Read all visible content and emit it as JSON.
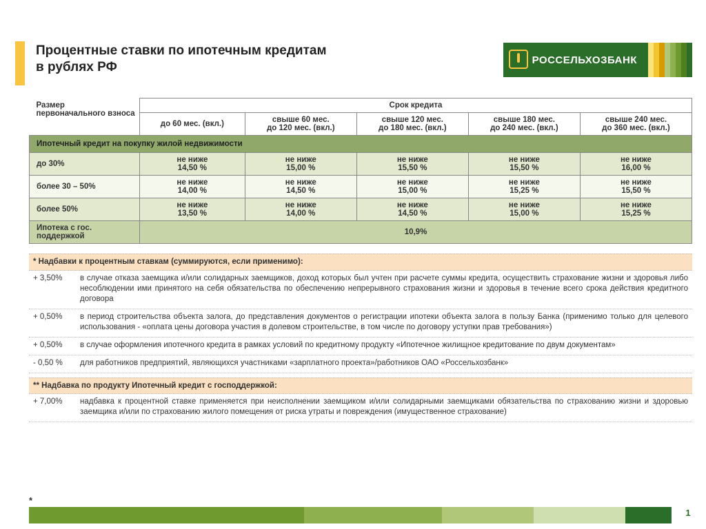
{
  "brand": {
    "name": "РОССЕЛЬХОЗБАНК",
    "logo_bg": "#2a6e2a",
    "logo_accent": "#f9c440",
    "stripe_colors": [
      "#fbe27a",
      "#f4c430",
      "#d59a00",
      "#b0c77a",
      "#8fb04f",
      "#6f9a2f",
      "#4f7f1f",
      "#2a6e2a"
    ]
  },
  "title_line1": "Процентные ставки по ипотечным кредитам",
  "title_line2": "в рублях РФ",
  "rowhead_label": "Размер первоначального взноса",
  "term_header": "Срок кредита",
  "terms": [
    {
      "l1": "",
      "l2": "до 60 мес. (вкл.)"
    },
    {
      "l1": "свыше 60 мес.",
      "l2": "до 120 мес. (вкл.)"
    },
    {
      "l1": "свыше 120 мес.",
      "l2": "до 180 мес. (вкл.)"
    },
    {
      "l1": "свыше 180 мес.",
      "l2": "до 240 мес. (вкл.)"
    },
    {
      "l1": "свыше 240 мес.",
      "l2": "до 360 мес. (вкл.)"
    }
  ],
  "section1_label": "Ипотечный кредит на покупку жилой недвижимости",
  "not_below": "не ниже",
  "rows": [
    {
      "label": "до 30%",
      "vals": [
        "14,50 %",
        "15,00 %",
        "15,50 %",
        "15,50 %",
        "16,00 %"
      ],
      "cls": "alt-a"
    },
    {
      "label": "более 30 – 50%",
      "vals": [
        "14,00 %",
        "14,50 %",
        "15,00 %",
        "15,25 %",
        "15,50 %"
      ],
      "cls": "alt-b"
    },
    {
      "label": "более 50%",
      "vals": [
        "13,50 %",
        "14,00 %",
        "14,50 %",
        "15,00 %",
        "15,25 %"
      ],
      "cls": "alt-a"
    }
  ],
  "gov_row": {
    "label": "Ипотека с гос. поддержкой",
    "val": "10,9%"
  },
  "notes_title": "* Надбавки к процентным ставкам (суммируются, если применимо):",
  "notes": [
    {
      "pct": "+ 3,50%",
      "txt": "в случае отказа заемщика и/или солидарных заемщиков, доход которых был учтен при расчете суммы кредита, осуществить страхование жизни и здоровья либо несоблюдении ими принятого на себя обязательства по обеспечению непрерывного страхования жизни и здоровья в течение всего срока действия кредитного договора"
    },
    {
      "pct": "+ 0,50%",
      "txt": "в период строительства объекта залога, до представления документов о регистрации ипотеки объекта залога в пользу Банка (применимо только для целевого использования - «оплата цены договора участия в долевом строительстве, в том числе по договору уступки прав требования»)"
    },
    {
      "pct": "+ 0,50%",
      "txt": "в случае оформления ипотечного кредита в рамках условий по кредитному продукту «Ипотечное жилищное кредитование по двум документам»"
    },
    {
      "pct": "- 0,50 %",
      "txt": "для работников предприятий, являющихся участниками «зарплатного проекта»/работников ОАО «Россельхозбанк»"
    }
  ],
  "notes2_title": "** Надбавка по продукту Ипотечный кредит с господдержкой:",
  "notes2": [
    {
      "pct": "+ 7,00%",
      "txt": "надбавка к процентной ставке применяется при неисполнении заемщиком и/или солидарными заемщиками обязательства по страхованию жизни и здоровью заемщика и/или по страхованию жилого помещения от риска утраты и повреждения (имущественное страхование)"
    }
  ],
  "footnote_star": "*",
  "page_number": "1",
  "bottom_bar": {
    "segments": [
      {
        "color": "#6f9a2f",
        "flex": 6
      },
      {
        "color": "#8fb04f",
        "flex": 3
      },
      {
        "color": "#b0c77a",
        "flex": 2
      },
      {
        "color": "#d0dfb0",
        "flex": 2
      },
      {
        "color": "#2a6e2a",
        "flex": 1
      }
    ]
  },
  "colors": {
    "section_bg": "#90a86a",
    "alt_a": "#e2e9cf",
    "alt_b": "#f5f8ec",
    "gov_bg": "#c7d4a8",
    "note_head_bg": "#fbe0c2"
  }
}
